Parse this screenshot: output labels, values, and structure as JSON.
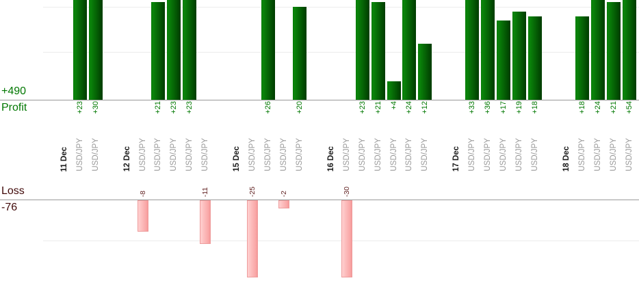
{
  "chart_data": {
    "type": "bar",
    "description": "Per-trade profit and loss bar chart grouped by day, profits above upper baseline, losses below lower baseline",
    "symbol_label": "USD/JPY",
    "axis_labels": {
      "profit_total": "+490",
      "profit": "Profit",
      "loss": "Loss",
      "loss_total": "-76"
    },
    "groups": [
      {
        "date": "11 Dec",
        "trades": [
          23,
          30
        ]
      },
      {
        "date": "12 Dec",
        "trades": [
          -8,
          21,
          23,
          23,
          -11
        ]
      },
      {
        "date": "15 Dec",
        "trades": [
          -25,
          26,
          -2,
          20
        ]
      },
      {
        "date": "16 Dec",
        "trades": [
          -30,
          23,
          21,
          4,
          24,
          12
        ]
      },
      {
        "date": "17 Dec",
        "trades": [
          33,
          36,
          17,
          19,
          18
        ]
      },
      {
        "date": "18 Dec",
        "trades": [
          18,
          24,
          21,
          54
        ]
      }
    ],
    "profit_values": [
      23,
      30,
      21,
      23,
      23,
      26,
      20,
      23,
      21,
      4,
      24,
      12,
      33,
      36,
      17,
      19,
      18,
      18,
      24,
      21,
      54
    ],
    "loss_values": [
      -8,
      -11,
      -25,
      -2,
      -30
    ],
    "profit_sum": 490,
    "loss_sum": -76,
    "layout_hints": {
      "grid": "faint horizontal gridlines",
      "bars_clipped_top": true,
      "bars_clipped_bottom": true,
      "label_rotation": "vertical bottom-to-top"
    }
  },
  "colors": {
    "profit_text": "#007700",
    "loss_text": "#5f1f1f",
    "loss_axis_text": "#400808",
    "date_text": "#1a1a1a",
    "symbol_text": "#999999",
    "axis_line": "#999999",
    "gridline": "#ececec",
    "bar_green_light": "#0a840a",
    "bar_green_dark": "#003c00",
    "bar_pink_light": "#ffd0d0",
    "bar_pink_dark": "#f59898",
    "bar_pink_border": "#ee9c9c"
  }
}
